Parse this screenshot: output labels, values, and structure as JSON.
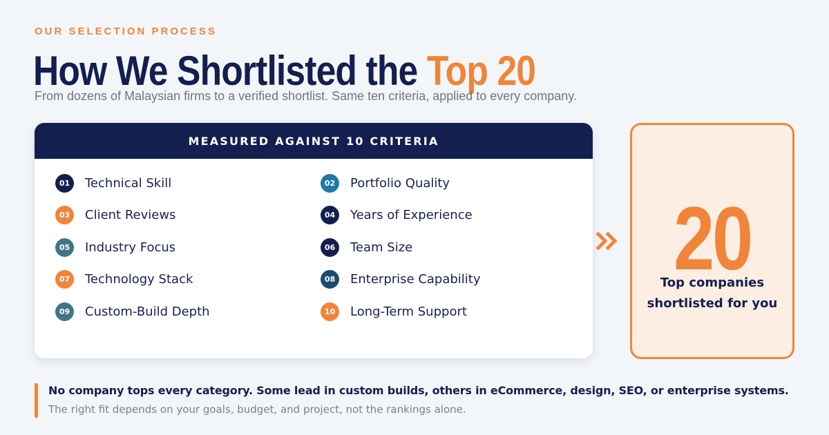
{
  "header": {
    "eyebrow": "OUR SELECTION PROCESS",
    "title_main": "How We Shortlisted the ",
    "title_accent": "Top 20",
    "subtitle": "From dozens of Malaysian firms to a verified shortlist. Same ten criteria, applied to every company."
  },
  "criteria_card": {
    "heading": "MEASURED AGAINST 10 CRITERIA",
    "items": [
      {
        "num": "01",
        "label": "Technical Skill",
        "color": "#131f4e"
      },
      {
        "num": "02",
        "label": "Portfolio Quality",
        "color": "#1f78a8"
      },
      {
        "num": "03",
        "label": "Client Reviews",
        "color": "#f0853a"
      },
      {
        "num": "04",
        "label": "Years of Experience",
        "color": "#131f4e"
      },
      {
        "num": "05",
        "label": "Industry Focus",
        "color": "#3e7689"
      },
      {
        "num": "06",
        "label": "Team Size",
        "color": "#131f4e"
      },
      {
        "num": "07",
        "label": "Technology Stack",
        "color": "#f0853a"
      },
      {
        "num": "08",
        "label": "Enterprise Capability",
        "color": "#1d4a6e"
      },
      {
        "num": "09",
        "label": "Custom-Build Depth",
        "color": "#3e7689"
      },
      {
        "num": "10",
        "label": "Long-Term Support",
        "color": "#f0853a"
      }
    ]
  },
  "result": {
    "number": "20",
    "caption_line1": "Top companies",
    "caption_line2": "shortlisted for you",
    "arrow_icon": "double-chevron-right-icon"
  },
  "note": {
    "strong": "No company tops every category. Some lead in custom builds, others in eCommerce, design, SEO, or enterprise systems.",
    "light": "The right fit depends on your goals, budget, and project, not the rankings alone."
  },
  "colors": {
    "navy": "#131f4e",
    "orange": "#f0853a",
    "background": "#f3f6f9",
    "result_fill": "#fdeee3"
  }
}
